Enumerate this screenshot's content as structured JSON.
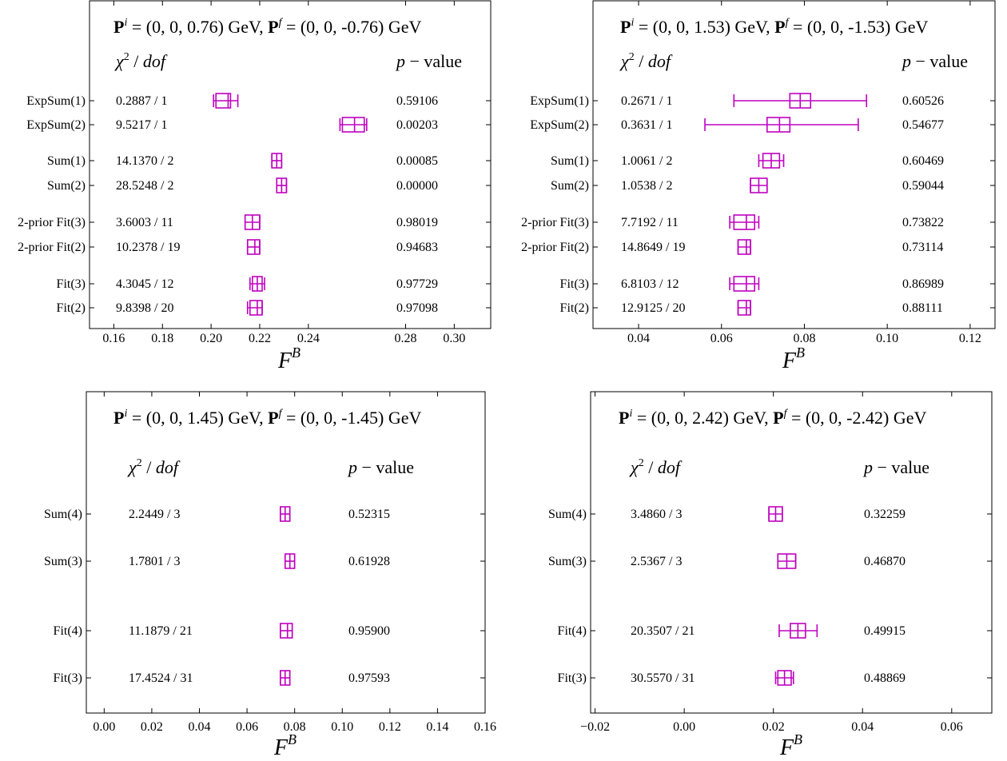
{
  "chart_data": [
    {
      "type": "forest",
      "title": [
        "P",
        "i",
        " = (0, 0, 0.76) GeV,  ",
        "P",
        "f",
        " = (0, 0, -0.76) GeV"
      ],
      "xlabel": [
        "F",
        "B"
      ],
      "col_headers": [
        "χ",
        "2",
        " / ",
        "dof",
        "p",
        " − value"
      ],
      "xlim": [
        0.15,
        0.315
      ],
      "xticks": [
        "0.16",
        "0.18",
        "0.20",
        "0.22",
        "0.24",
        "0.28",
        "0.30"
      ],
      "xtick_values": [
        0.16,
        0.18,
        0.2,
        0.22,
        0.24,
        0.28,
        0.3
      ],
      "rows": [
        {
          "label": "ExpSum(1)",
          "chi2": "0.2887 / 1",
          "p": "0.59106",
          "center": 0.207,
          "inner_lo": 0.202,
          "inner_hi": 0.208,
          "err_lo": 0.201,
          "err_hi": 0.211
        },
        {
          "label": "ExpSum(2)",
          "chi2": "9.5217 / 1",
          "p": "0.00203",
          "center": 0.259,
          "inner_lo": 0.254,
          "inner_hi": 0.263,
          "err_lo": 0.253,
          "err_hi": 0.264
        },
        {
          "label": "Sum(1)",
          "chi2": "14.1370 / 2",
          "p": "0.00085",
          "center": 0.227,
          "inner_lo": 0.225,
          "inner_hi": 0.229,
          "err_lo": 0.225,
          "err_hi": 0.229
        },
        {
          "label": "Sum(2)",
          "chi2": "28.5248 / 2",
          "p": "0.00000",
          "center": 0.229,
          "inner_lo": 0.227,
          "inner_hi": 0.231,
          "err_lo": 0.227,
          "err_hi": 0.231
        },
        {
          "label": "2-prior Fit(3)",
          "chi2": "3.6003 / 11",
          "p": "0.98019",
          "center": 0.217,
          "inner_lo": 0.214,
          "inner_hi": 0.22,
          "err_lo": 0.214,
          "err_hi": 0.22
        },
        {
          "label": "2-prior Fit(2)",
          "chi2": "10.2378 / 19",
          "p": "0.94683",
          "center": 0.218,
          "inner_lo": 0.215,
          "inner_hi": 0.22,
          "err_lo": 0.215,
          "err_hi": 0.22
        },
        {
          "label": "Fit(3)",
          "chi2": "4.3045 / 12",
          "p": "0.97729",
          "center": 0.219,
          "inner_lo": 0.217,
          "inner_hi": 0.221,
          "err_lo": 0.216,
          "err_hi": 0.222
        },
        {
          "label": "Fit(2)",
          "chi2": "9.8398 / 20",
          "p": "0.97098",
          "center": 0.219,
          "inner_lo": 0.216,
          "inner_hi": 0.221,
          "err_lo": 0.215,
          "err_hi": 0.221
        }
      ]
    },
    {
      "type": "forest",
      "title": [
        "P",
        "i",
        " = (0, 0, 1.53) GeV,  ",
        "P",
        "f",
        " = (0, 0, -1.53) GeV"
      ],
      "xlabel": [
        "F",
        "B"
      ],
      "col_headers": [
        "χ",
        "2",
        " / ",
        "dof",
        "p",
        " − value"
      ],
      "xlim": [
        0.029,
        0.126
      ],
      "xticks": [
        "0.04",
        "0.06",
        "0.08",
        "0.10",
        "0.12"
      ],
      "xtick_values": [
        0.04,
        0.06,
        0.08,
        0.1,
        0.12
      ],
      "rows": [
        {
          "label": "ExpSum(1)",
          "chi2": "0.2671 / 1",
          "p": "0.60526",
          "center": 0.079,
          "inner_lo": 0.0765,
          "inner_hi": 0.0815,
          "err_lo": 0.063,
          "err_hi": 0.095
        },
        {
          "label": "ExpSum(2)",
          "chi2": "0.3631 / 1",
          "p": "0.54677",
          "center": 0.074,
          "inner_lo": 0.071,
          "inner_hi": 0.0765,
          "err_lo": 0.056,
          "err_hi": 0.093
        },
        {
          "label": "Sum(1)",
          "chi2": "1.0061 / 2",
          "p": "0.60469",
          "center": 0.072,
          "inner_lo": 0.07,
          "inner_hi": 0.074,
          "err_lo": 0.069,
          "err_hi": 0.075
        },
        {
          "label": "Sum(2)",
          "chi2": "1.0538 / 2",
          "p": "0.59044",
          "center": 0.069,
          "inner_lo": 0.067,
          "inner_hi": 0.071,
          "err_lo": 0.067,
          "err_hi": 0.071
        },
        {
          "label": "2-prior Fit(3)",
          "chi2": "7.7192 / 11",
          "p": "0.73822",
          "center": 0.066,
          "inner_lo": 0.063,
          "inner_hi": 0.068,
          "err_lo": 0.062,
          "err_hi": 0.069
        },
        {
          "label": "2-prior Fit(2)",
          "chi2": "14.8649 / 19",
          "p": "0.73114",
          "center": 0.066,
          "inner_lo": 0.064,
          "inner_hi": 0.067,
          "err_lo": 0.064,
          "err_hi": 0.067
        },
        {
          "label": "Fit(3)",
          "chi2": "6.8103 / 12",
          "p": "0.86989",
          "center": 0.066,
          "inner_lo": 0.063,
          "inner_hi": 0.068,
          "err_lo": 0.062,
          "err_hi": 0.069
        },
        {
          "label": "Fit(2)",
          "chi2": "12.9125 / 20",
          "p": "0.88111",
          "center": 0.066,
          "inner_lo": 0.064,
          "inner_hi": 0.067,
          "err_lo": 0.064,
          "err_hi": 0.067
        }
      ]
    },
    {
      "type": "forest",
      "title": [
        "P",
        "i",
        " = (0, 0, 1.45) GeV,  ",
        "P",
        "f",
        " = (0, 0, -1.45) GeV"
      ],
      "xlabel": [
        "F",
        "B"
      ],
      "col_headers": [
        "χ",
        "2",
        " / ",
        "dof",
        "p",
        " − value"
      ],
      "xlim": [
        -0.0075,
        0.16
      ],
      "xticks": [
        "0.00",
        "0.02",
        "0.04",
        "0.06",
        "0.08",
        "0.10",
        "0.12",
        "0.14",
        "0.16"
      ],
      "xtick_values": [
        0.0,
        0.02,
        0.04,
        0.06,
        0.08,
        0.1,
        0.12,
        0.14,
        0.16
      ],
      "rows": [
        {
          "label": "Sum(4)",
          "chi2": "2.2449 / 3",
          "p": "0.52315",
          "center": 0.076,
          "inner_lo": 0.074,
          "inner_hi": 0.078,
          "err_lo": 0.074,
          "err_hi": 0.078
        },
        {
          "label": "Sum(3)",
          "chi2": "1.7801 / 3",
          "p": "0.61928",
          "center": 0.078,
          "inner_lo": 0.076,
          "inner_hi": 0.08,
          "err_lo": 0.076,
          "err_hi": 0.08
        },
        {
          "label": "Fit(4)",
          "chi2": "11.1879 / 21",
          "p": "0.95900",
          "center": 0.077,
          "inner_lo": 0.074,
          "inner_hi": 0.079,
          "err_lo": 0.074,
          "err_hi": 0.079
        },
        {
          "label": "Fit(3)",
          "chi2": "17.4524 / 31",
          "p": "0.97593",
          "center": 0.076,
          "inner_lo": 0.074,
          "inner_hi": 0.078,
          "err_lo": 0.074,
          "err_hi": 0.078
        }
      ]
    },
    {
      "type": "forest",
      "title": [
        "P",
        "i",
        " = (0, 0, 2.42) GeV,  ",
        "P",
        "f",
        " = (0, 0, -2.42) GeV"
      ],
      "xlabel": [
        "F",
        "B"
      ],
      "col_headers": [
        "χ",
        "2",
        " / ",
        "dof",
        "p",
        " − value"
      ],
      "xlim": [
        -0.021,
        0.069
      ],
      "xticks": [
        "−0.02",
        "0.00",
        "0.02",
        "0.04",
        "0.06"
      ],
      "xtick_values": [
        -0.02,
        0.0,
        0.02,
        0.04,
        0.06
      ],
      "rows": [
        {
          "label": "Sum(4)",
          "chi2": "3.4860 / 3",
          "p": "0.32259",
          "center": 0.0205,
          "inner_lo": 0.019,
          "inner_hi": 0.022,
          "err_lo": 0.019,
          "err_hi": 0.022
        },
        {
          "label": "Sum(3)",
          "chi2": "2.5367 / 3",
          "p": "0.46870",
          "center": 0.023,
          "inner_lo": 0.021,
          "inner_hi": 0.025,
          "err_lo": 0.021,
          "err_hi": 0.025
        },
        {
          "label": "Fit(4)",
          "chi2": "20.3507 / 21",
          "p": "0.49915",
          "center": 0.0255,
          "inner_lo": 0.0238,
          "inner_hi": 0.0272,
          "err_lo": 0.0213,
          "err_hi": 0.0298
        },
        {
          "label": "Fit(3)",
          "chi2": "30.5570 / 31",
          "p": "0.48869",
          "center": 0.0225,
          "inner_lo": 0.021,
          "inner_hi": 0.024,
          "err_lo": 0.0205,
          "err_hi": 0.0245
        }
      ]
    }
  ],
  "colors": {
    "marker": "#c000c0",
    "axes": "#000000",
    "background": "#ffffff"
  }
}
